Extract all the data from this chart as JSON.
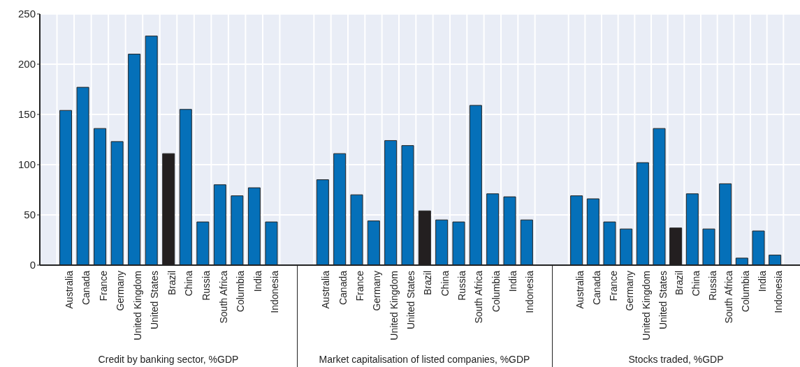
{
  "chart_data": [
    {
      "type": "bar",
      "xlabel": "Credit by banking sector, %GDP",
      "categories": [
        null,
        "Australia",
        "Canada",
        "France",
        "Germany",
        "United Kingdom",
        "United States",
        "Brazil",
        "China",
        "Russia",
        "South Africa",
        "Columbia",
        "India",
        "Indonesia",
        null
      ],
      "values": [
        null,
        154,
        177,
        136,
        123,
        210,
        228,
        111,
        155,
        43,
        80,
        69,
        77,
        43,
        null
      ],
      "colors": [
        null,
        "#0570b9",
        "#0570b9",
        "#0570b9",
        "#0570b9",
        "#0570b9",
        "#0570b9",
        "#231f20",
        "#0570b9",
        "#0570b9",
        "#0570b9",
        "#0570b9",
        "#0570b9",
        "#0570b9",
        null
      ],
      "ylim": [
        0,
        250
      ],
      "yticks": [
        0,
        50,
        100,
        150,
        200,
        250
      ],
      "grid": true
    },
    {
      "type": "bar",
      "xlabel": "Market capitalisation of listed companies, %GDP",
      "categories": [
        null,
        "Australia",
        "Canada",
        "France",
        "Germany",
        "United Kingdom",
        "United States",
        "Brazil",
        "China",
        "Russia",
        "South Africa",
        "Columbia",
        "India",
        "Indonesia",
        null
      ],
      "values": [
        null,
        85,
        111,
        70,
        44,
        124,
        119,
        54,
        45,
        43,
        159,
        71,
        68,
        45,
        null
      ],
      "colors": [
        null,
        "#0570b9",
        "#0570b9",
        "#0570b9",
        "#0570b9",
        "#0570b9",
        "#0570b9",
        "#231f20",
        "#0570b9",
        "#0570b9",
        "#0570b9",
        "#0570b9",
        "#0570b9",
        "#0570b9",
        null
      ],
      "ylim": [
        0,
        250
      ],
      "yticks": [
        0,
        50,
        100,
        150,
        200,
        250
      ],
      "grid": true,
      "tick_labels": "x"
    },
    {
      "type": "bar",
      "xlabel": "Stocks traded, %GDP",
      "categories": [
        null,
        "Australia",
        "Canada",
        "France",
        "Germany",
        "United Kingdom",
        "United States",
        "Brazil",
        "China",
        "Russia",
        "South Africa",
        "Columbia",
        "India",
        "Indonesia",
        null
      ],
      "values": [
        null,
        69,
        66,
        43,
        36,
        102,
        136,
        37,
        71,
        36,
        81,
        7,
        34,
        10,
        null
      ],
      "colors": [
        null,
        "#0570b9",
        "#0570b9",
        "#0570b9",
        "#0570b9",
        "#0570b9",
        "#0570b9",
        "#231f20",
        "#0570b9",
        "#0570b9",
        "#0570b9",
        "#0570b9",
        "#0570b9",
        "#0570b9",
        null
      ],
      "ylim": [
        0,
        250
      ],
      "yticks": [
        0,
        50,
        100,
        150,
        200,
        250
      ],
      "grid": true,
      "tick_labels": "x"
    }
  ]
}
